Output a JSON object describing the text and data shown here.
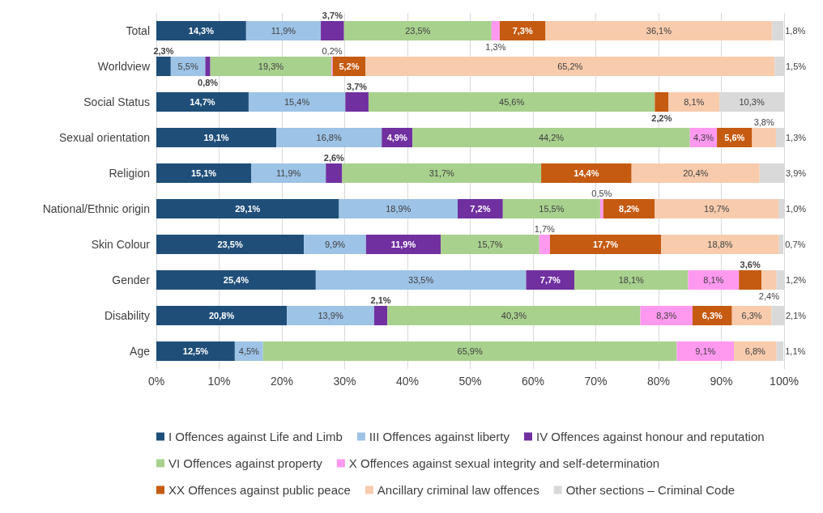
{
  "chart_data": {
    "type": "bar",
    "orientation": "horizontal",
    "stacked": true,
    "categories": [
      "Total",
      "Worldview",
      "Social Status",
      "Sexual orientation",
      "Religion",
      "National/Ethnic origin",
      "Skin Colour",
      "Gender",
      "Disability",
      "Age"
    ],
    "xlim": [
      0,
      100
    ],
    "xticks": [
      {
        "value": 0,
        "label": "0%"
      },
      {
        "value": 10,
        "label": "10%"
      },
      {
        "value": 20,
        "label": "20%"
      },
      {
        "value": 30,
        "label": "30%"
      },
      {
        "value": 40,
        "label": "40%"
      },
      {
        "value": 50,
        "label": "50%"
      },
      {
        "value": 60,
        "label": "60%"
      },
      {
        "value": 70,
        "label": "70%"
      },
      {
        "value": 80,
        "label": "80%"
      },
      {
        "value": 90,
        "label": "90%"
      },
      {
        "value": 100,
        "label": "100%"
      }
    ],
    "grid": "x",
    "legend": "bottom",
    "series": [
      {
        "name": "I Offences against Life and Limb",
        "color": "#1f4e79",
        "values": [
          14.3,
          2.3,
          14.7,
          19.1,
          15.1,
          29.1,
          23.5,
          25.4,
          20.8,
          12.5
        ],
        "value_labels": [
          "14,3%",
          "2,3%",
          "14,7%",
          "19,1%",
          "15,1%",
          "29,1%",
          "23,5%",
          "25,4%",
          "20,8%",
          "12,5%"
        ]
      },
      {
        "name": "III Offences against liberty",
        "color": "#9dc3e6",
        "values": [
          11.9,
          5.5,
          15.4,
          16.8,
          11.9,
          18.9,
          9.9,
          33.5,
          13.9,
          4.5
        ],
        "value_labels": [
          "11,9%",
          "5,5%",
          "15,4%",
          "16,8%",
          "11,9%",
          "18,9%",
          "9,9%",
          "33,5%",
          "13,9%",
          "4,5%"
        ]
      },
      {
        "name": "IV Offences against honour and reputation",
        "color": "#7030a0",
        "values": [
          3.7,
          0.8,
          3.7,
          4.9,
          2.6,
          7.2,
          11.9,
          7.7,
          2.1,
          null
        ],
        "value_labels": [
          "3,7%",
          "0,8%",
          "3,7%",
          "4,9%",
          "2,6%",
          "7,2%",
          "11,9%",
          "7,7%",
          "2,1%",
          null
        ]
      },
      {
        "name": "VI Offences against property",
        "color": "#a9d18e",
        "values": [
          23.5,
          19.3,
          45.6,
          44.2,
          31.7,
          15.5,
          15.7,
          18.1,
          40.3,
          65.9
        ],
        "value_labels": [
          "23,5%",
          "19,3%",
          "45,6%",
          "44,2%",
          "31,7%",
          "15,5%",
          "15,7%",
          "18,1%",
          "40,3%",
          "65,9%"
        ]
      },
      {
        "name": "X Offences against sexual integrity and self-determination",
        "color": "#ff99f0",
        "values": [
          1.3,
          0.2,
          null,
          4.3,
          null,
          0.5,
          1.7,
          8.1,
          8.3,
          9.1
        ],
        "value_labels": [
          "1,3%",
          "0,2%",
          null,
          "4,3%",
          null,
          "0,5%",
          "1,7%",
          "8,1%",
          "8,3%",
          "9,1%"
        ]
      },
      {
        "name": "XX Offences against public peace",
        "color": "#c55a11",
        "values": [
          7.3,
          5.2,
          2.2,
          5.6,
          14.4,
          8.2,
          17.7,
          3.6,
          6.3,
          null
        ],
        "value_labels": [
          "7,3%",
          "5,2%",
          "2,2%",
          "5,6%",
          "14,4%",
          "8,2%",
          "17,7%",
          "3,6%",
          "6,3%",
          null
        ]
      },
      {
        "name": "Ancillary criminal law offences",
        "color": "#f8cbad",
        "values": [
          36.1,
          65.2,
          8.1,
          3.8,
          20.4,
          19.7,
          18.8,
          2.4,
          6.3,
          6.8
        ],
        "value_labels": [
          "36,1%",
          "65,2%",
          "8,1%",
          "3,8%",
          "20,4%",
          "19,7%",
          "18,8%",
          "2,4%",
          "6,3%",
          "6,8%"
        ]
      },
      {
        "name": "Other sections – Criminal Code",
        "color": "#d9d9d9",
        "values": [
          1.8,
          1.5,
          10.3,
          1.3,
          3.9,
          1.0,
          0.7,
          1.2,
          2.1,
          1.1
        ],
        "value_labels": [
          "1,8%",
          "1,5%",
          "10,3%",
          "1,3%",
          "3,9%",
          "1,0%",
          "0,7%",
          "1,2%",
          "2,1%",
          "1,1%"
        ]
      }
    ]
  }
}
